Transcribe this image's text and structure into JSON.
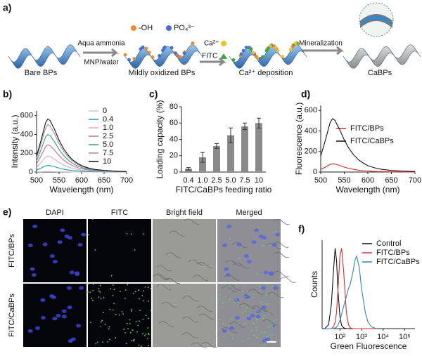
{
  "schematic": {
    "panel": "a)",
    "legend_oh": "-OH",
    "legend_po4": "PO₄³⁻",
    "step1_top": "Aqua ammonia",
    "step1_bottom": "MNP/water",
    "ca": "Ca²⁺",
    "fitc": "FITC",
    "step3": "Mineralization",
    "labels": [
      "Bare BPs",
      "Mildly oxidized BPs",
      "Ca²⁺ deposition",
      "CaBPs"
    ]
  },
  "chart_data": [
    {
      "type": "line",
      "panel": "b)",
      "xlabel": "Wavelength (nm)",
      "ylabel": "Intensity (a.u.)",
      "xlim": [
        500,
        700
      ],
      "xticks": [
        500,
        550,
        600,
        650,
        700
      ],
      "ylim": [
        0,
        650
      ],
      "yticks": [
        0,
        200,
        400,
        600
      ],
      "legend": "right",
      "x": [
        500,
        510,
        520,
        525,
        530,
        540,
        550,
        560,
        570,
        580,
        590,
        600,
        610,
        620,
        630,
        640,
        650,
        660,
        670,
        680,
        690,
        700
      ],
      "series": [
        {
          "name": "0",
          "color": "#c8c8c8",
          "values": [
            2,
            3,
            5,
            5,
            5,
            4,
            3,
            2,
            2,
            1,
            1,
            1,
            0,
            0,
            0,
            0,
            0,
            0,
            0,
            0,
            0,
            0
          ]
        },
        {
          "name": "0.4",
          "color": "#1aa0b4",
          "values": [
            21,
            42,
            65,
            70,
            68,
            56,
            42,
            31,
            22,
            16,
            12,
            8,
            6,
            5,
            4,
            3,
            2,
            2,
            1,
            1,
            1,
            1
          ]
        },
        {
          "name": "1.0",
          "color": "#e0a8bc",
          "values": [
            51,
            102,
            158,
            170,
            165,
            136,
            102,
            75,
            54,
            39,
            29,
            20,
            15,
            11,
            9,
            7,
            5,
            4,
            3,
            3,
            2,
            2
          ]
        },
        {
          "name": "2.5",
          "color": "#c0708e",
          "values": [
            87,
            174,
            270,
            290,
            281,
            232,
            174,
            128,
            93,
            67,
            49,
            35,
            26,
            19,
            15,
            12,
            9,
            7,
            6,
            4,
            3,
            3
          ]
        },
        {
          "name": "5.0",
          "color": "#3a9a88",
          "values": [
            120,
            240,
            372,
            400,
            388,
            320,
            240,
            176,
            128,
            92,
            68,
            48,
            36,
            26,
            20,
            16,
            12,
            10,
            8,
            6,
            5,
            4
          ]
        },
        {
          "name": "7.5",
          "color": "#a88898",
          "values": [
            152,
            303,
            470,
            505,
            490,
            404,
            303,
            222,
            162,
            116,
            86,
            61,
            45,
            33,
            25,
            20,
            15,
            13,
            10,
            8,
            6,
            5
          ]
        },
        {
          "name": "10",
          "color": "#111111",
          "values": [
            170,
            339,
            525,
            565,
            548,
            452,
            339,
            249,
            181,
            130,
            96,
            68,
            51,
            37,
            28,
            23,
            17,
            14,
            11,
            8,
            7,
            6
          ]
        }
      ]
    },
    {
      "type": "bar",
      "panel": "c)",
      "xlabel": "FITC/CaBPs feeding ratio",
      "ylabel": "Loading capacity (%)",
      "categories": [
        "0.4",
        "1.0",
        "2.5",
        "5.0",
        "7.5",
        "10"
      ],
      "values": [
        4,
        18,
        32,
        45,
        56,
        60
      ],
      "errors": [
        1.5,
        6,
        3,
        9,
        4,
        6
      ],
      "color": "#8a8a8a",
      "ylim": [
        0,
        80
      ],
      "yticks": [
        0,
        20,
        40,
        60,
        80
      ]
    },
    {
      "type": "line",
      "panel": "d)",
      "xlabel": "Wavelength (nm)",
      "ylabel": "Fluorescence (a.u.)",
      "xlim": [
        500,
        700
      ],
      "xticks": [
        500,
        550,
        600,
        650,
        700
      ],
      "ylim": [
        0,
        650
      ],
      "yticks": [
        0,
        200,
        400,
        600
      ],
      "legend": "upper right",
      "x": [
        500,
        510,
        520,
        525,
        530,
        540,
        550,
        560,
        570,
        580,
        590,
        600,
        610,
        620,
        630,
        640,
        650,
        660,
        670,
        680,
        690,
        700
      ],
      "series": [
        {
          "name": "FITC/BPs",
          "color": "#d42a2a",
          "values": [
            24,
            48,
            74,
            80,
            78,
            64,
            48,
            35,
            26,
            18,
            14,
            10,
            7,
            5,
            4,
            3,
            2,
            2,
            2,
            1,
            1,
            1
          ]
        },
        {
          "name": "FITC/CaBPs",
          "color": "#111111",
          "values": [
            156,
            312,
            484,
            520,
            504,
            416,
            312,
            229,
            166,
            120,
            88,
            62,
            47,
            34,
            26,
            21,
            16,
            13,
            10,
            8,
            6,
            5
          ]
        }
      ]
    },
    {
      "type": "line",
      "panel": "f)",
      "xlabel": "Green Fluorescence",
      "ylabel": "Counts",
      "xscale": "log",
      "xlim": [
        15,
        300000
      ],
      "xticks": [
        {
          "value": 100,
          "label": "10²"
        },
        {
          "value": 1000,
          "label": "10³"
        },
        {
          "value": 10000,
          "label": "10⁴"
        },
        {
          "value": 100000,
          "label": "10⁵"
        }
      ],
      "ylim": [
        0,
        110
      ],
      "legend": "upper right",
      "x": [
        20,
        30,
        40,
        50,
        60,
        70,
        80,
        100,
        120,
        150,
        200,
        250,
        300,
        400,
        500,
        600,
        800,
        1000,
        1500,
        2000,
        3000,
        5000
      ],
      "series": [
        {
          "name": "Control",
          "color": "#111111",
          "values": [
            0,
            5,
            30,
            70,
            100,
            85,
            50,
            15,
            4,
            1,
            0,
            0,
            0,
            0,
            0,
            0,
            0,
            0,
            0,
            0,
            0,
            0
          ]
        },
        {
          "name": "FITC/BPs",
          "color": "#e02828",
          "values": [
            0,
            0,
            0,
            2,
            8,
            20,
            45,
            90,
            100,
            70,
            20,
            5,
            1,
            0,
            0,
            0,
            0,
            0,
            0,
            0,
            0,
            0
          ]
        },
        {
          "name": "FITC/CaBPs",
          "color": "#2a86c8",
          "values": [
            0,
            0,
            0,
            0,
            1,
            2,
            4,
            10,
            18,
            28,
            40,
            50,
            55,
            70,
            85,
            90,
            75,
            50,
            20,
            8,
            2,
            0
          ]
        }
      ]
    }
  ],
  "micrographs": {
    "panel": "e)",
    "columns": [
      "DAPI",
      "FITC",
      "Bright field",
      "Merged"
    ],
    "rows": [
      "FITC/BPs",
      "FITC/CaBPs"
    ]
  }
}
